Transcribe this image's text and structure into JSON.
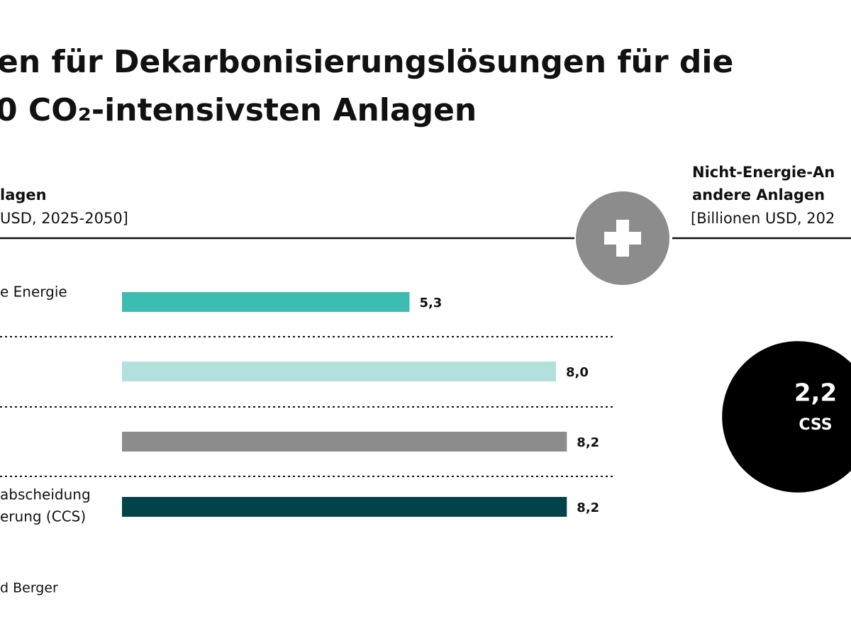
{
  "title": [
    "en für Dekarbonisierungslösungen für die",
    "0 CO₂-intensivsten Anlagen"
  ],
  "left_header": {
    "title": "lagen",
    "unit": "USD, 2025-2050]"
  },
  "right_header": {
    "title": [
      "Nicht-Energie-An",
      "andere Anlagen"
    ],
    "unit": "[Billionen USD, 202"
  },
  "source": "d Berger",
  "chart_data": [
    {
      "type": "hbar",
      "categories": [
        [
          "e Energie"
        ],
        null,
        null,
        [
          "abscheidung",
          "erung (CCS)"
        ]
      ],
      "values": [
        5.3,
        8.0,
        8.2,
        8.2
      ],
      "value_labels": [
        "5,3",
        "8,0",
        "8,2",
        "8,2"
      ],
      "colors": [
        "#3dbdb2",
        "#b3e0dd",
        "#8c8c8c",
        "#00444a"
      ]
    },
    {
      "type": "bubble",
      "values": [
        2.2
      ],
      "value_labels": [
        "2,2"
      ],
      "labels": [
        "CSS"
      ],
      "color": "#000000"
    }
  ]
}
